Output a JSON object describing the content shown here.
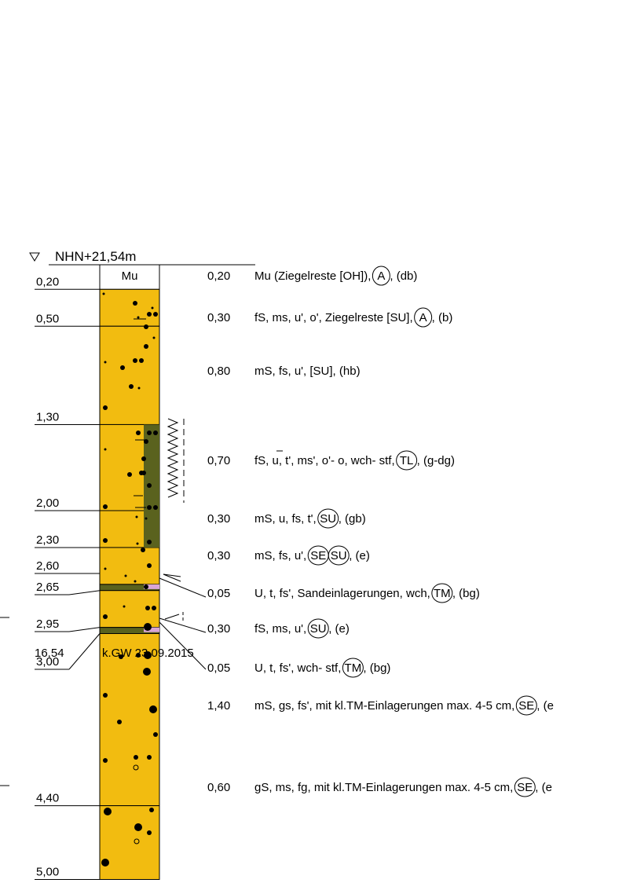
{
  "header": {
    "symbol": "▽",
    "elevation": "NHN+21,54m"
  },
  "colors": {
    "sand": "#f2bc10",
    "clay": "#5a621e",
    "lens": "#d9a6d6",
    "line": "#000000"
  },
  "layers": [
    {
      "depth": "0,20",
      "thickness": "0,20",
      "fill": "white",
      "label": "Mu",
      "desc": "Mu (Ziegelreste [OH]),",
      "circle1": "A",
      "tail": ", (db)"
    },
    {
      "depth": "0,50",
      "thickness": "0,30",
      "fill": "sand",
      "desc": "fS, ms, u', o', Ziegelreste [SU],",
      "circle1": "A",
      "tail": ", (b)"
    },
    {
      "depth": "1,30",
      "thickness": "0,80",
      "fill": "sand",
      "desc": "mS, fs, u', [SU], (hb)"
    },
    {
      "depth": "2,00",
      "thickness": "0,70",
      "fill": "sand",
      "desc": "fS, u, t', ms', o'- o, wch- stf,",
      "circle1": "TL",
      "tail": ", (g-dg)"
    },
    {
      "depth": "2,30",
      "thickness": "0,30",
      "fill": "sand",
      "desc": "mS, u, fs, t',",
      "circle1": "SU",
      "tail": ", (gb)"
    },
    {
      "depth": "2,60",
      "thickness": "0,30",
      "fill": "sand",
      "desc": "mS, fs, u',",
      "circle1": "SE",
      "circle2": "SU",
      "tail": ", (e)"
    },
    {
      "depth": "2,65",
      "thickness": "0,05",
      "fill": "clay",
      "desc": "U, t, fs', Sandeinlagerungen, wch,",
      "circle1": "TM",
      "tail": ", (bg)"
    },
    {
      "depth": "2,95",
      "thickness": "0,30",
      "fill": "sand",
      "desc": "fS, ms, u',",
      "circle1": "SU",
      "tail": ", (e)"
    },
    {
      "depth": "3,00",
      "thickness": "0,05",
      "fill": "clay",
      "desc": "U, t, fs', wch- stf,",
      "circle1": "TM",
      "tail": ", (bg)"
    },
    {
      "depth": "4,40",
      "thickness": "1,40",
      "fill": "sand",
      "desc": "mS, gs, fs', mit kl.TM-Einlagerungen max. 4-5 cm,",
      "circle1": "SE",
      "tail": ", (e"
    },
    {
      "depth": "5,00",
      "thickness": "0,60",
      "fill": "sand",
      "desc": "gS, ms, fg, mit kl.TM-Einlagerungen max. 4-5 cm,",
      "circle1": "SE",
      "tail": ", (e"
    }
  ],
  "footer": {
    "base_elevation": "16,54",
    "groundwater": "k.GW 23.09.2015"
  }
}
